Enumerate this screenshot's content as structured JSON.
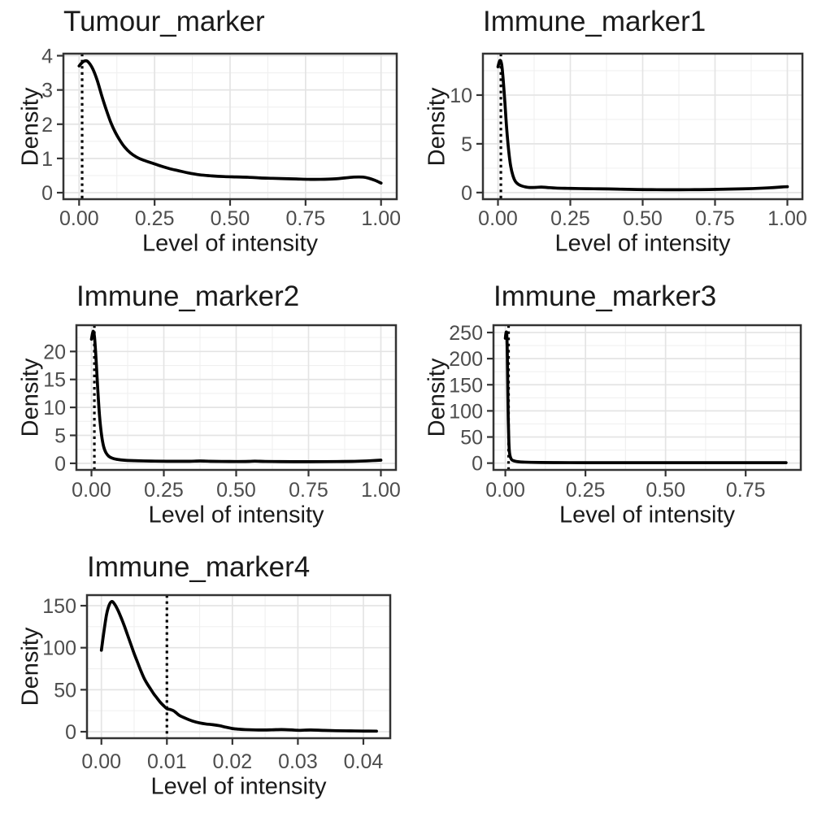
{
  "figure": {
    "background": "#FFFFFF",
    "style": {
      "curve_color": "#000000",
      "vline_color": "#000000",
      "panel_border_color": "#333333",
      "grid_major_color": "#E4E4E4",
      "grid_minor_color": "#F0F0F0",
      "tick_color": "#333333",
      "tick_label_color": "#4D4D4D",
      "title_color": "#1A1A1A"
    }
  },
  "chart_data": [
    {
      "type": "line",
      "title": "Tumour_marker",
      "xlabel": "Level of intensity",
      "ylabel": "Density",
      "grid": true,
      "legend": false,
      "xlim": [
        -0.052,
        1.052
      ],
      "ylim": [
        -0.19,
        4.06
      ],
      "x_ticks": {
        "values": [
          0,
          0.25,
          0.5,
          0.75,
          1
        ],
        "labels": [
          "0.00",
          "0.25",
          "0.50",
          "0.75",
          "1.00"
        ]
      },
      "y_ticks": {
        "values": [
          0,
          1,
          2,
          3,
          4
        ],
        "labels": [
          "0",
          "1",
          "2",
          "3",
          "4"
        ]
      },
      "threshold_vline_x": 0.01,
      "series": [
        {
          "name": "density",
          "points": [
            [
              0,
              3.7
            ],
            [
              0.01,
              3.8
            ],
            [
              0.02,
              3.85
            ],
            [
              0.03,
              3.82
            ],
            [
              0.045,
              3.62
            ],
            [
              0.06,
              3.28
            ],
            [
              0.075,
              2.83
            ],
            [
              0.09,
              2.42
            ],
            [
              0.105,
              2.05
            ],
            [
              0.12,
              1.76
            ],
            [
              0.135,
              1.53
            ],
            [
              0.15,
              1.34
            ],
            [
              0.17,
              1.16
            ],
            [
              0.19,
              1.04
            ],
            [
              0.21,
              0.96
            ],
            [
              0.24,
              0.87
            ],
            [
              0.27,
              0.78
            ],
            [
              0.3,
              0.7
            ],
            [
              0.33,
              0.64
            ],
            [
              0.36,
              0.58
            ],
            [
              0.4,
              0.52
            ],
            [
              0.44,
              0.49
            ],
            [
              0.48,
              0.47
            ],
            [
              0.52,
              0.46
            ],
            [
              0.56,
              0.45
            ],
            [
              0.6,
              0.43
            ],
            [
              0.64,
              0.42
            ],
            [
              0.68,
              0.41
            ],
            [
              0.72,
              0.4
            ],
            [
              0.76,
              0.39
            ],
            [
              0.8,
              0.39
            ],
            [
              0.84,
              0.4
            ],
            [
              0.88,
              0.43
            ],
            [
              0.91,
              0.455
            ],
            [
              0.94,
              0.455
            ],
            [
              0.96,
              0.42
            ],
            [
              0.98,
              0.36
            ],
            [
              1.0,
              0.28
            ]
          ]
        }
      ]
    },
    {
      "type": "line",
      "title": "Immune_marker1",
      "xlabel": "Level of intensity",
      "ylabel": "Density",
      "grid": true,
      "legend": false,
      "xlim": [
        -0.052,
        1.052
      ],
      "ylim": [
        -0.68,
        14.25
      ],
      "x_ticks": {
        "values": [
          0,
          0.25,
          0.5,
          0.75,
          1
        ],
        "labels": [
          "0.00",
          "0.25",
          "0.50",
          "0.75",
          "1.00"
        ]
      },
      "y_ticks": {
        "values": [
          0,
          5,
          10
        ],
        "labels": [
          "0",
          "5",
          "10"
        ]
      },
      "threshold_vline_x": 0.01,
      "series": [
        {
          "name": "density",
          "points": [
            [
              0,
              12.9
            ],
            [
              0.004,
              13.35
            ],
            [
              0.008,
              13.55
            ],
            [
              0.013,
              13.1
            ],
            [
              0.018,
              11.6
            ],
            [
              0.024,
              9.2
            ],
            [
              0.03,
              6.6
            ],
            [
              0.037,
              4.3
            ],
            [
              0.044,
              2.7
            ],
            [
              0.052,
              1.7
            ],
            [
              0.06,
              1.15
            ],
            [
              0.07,
              0.85
            ],
            [
              0.082,
              0.68
            ],
            [
              0.095,
              0.58
            ],
            [
              0.11,
              0.52
            ],
            [
              0.13,
              0.53
            ],
            [
              0.15,
              0.56
            ],
            [
              0.17,
              0.52
            ],
            [
              0.2,
              0.46
            ],
            [
              0.24,
              0.43
            ],
            [
              0.28,
              0.41
            ],
            [
              0.33,
              0.39
            ],
            [
              0.38,
              0.37
            ],
            [
              0.43,
              0.34
            ],
            [
              0.48,
              0.31
            ],
            [
              0.53,
              0.3
            ],
            [
              0.58,
              0.29
            ],
            [
              0.63,
              0.29
            ],
            [
              0.68,
              0.3
            ],
            [
              0.73,
              0.31
            ],
            [
              0.78,
              0.34
            ],
            [
              0.83,
              0.37
            ],
            [
              0.88,
              0.41
            ],
            [
              0.92,
              0.46
            ],
            [
              0.95,
              0.51
            ],
            [
              0.98,
              0.57
            ],
            [
              1.0,
              0.6
            ]
          ]
        }
      ]
    },
    {
      "type": "line",
      "title": "Immune_marker2",
      "xlabel": "Level of intensity",
      "ylabel": "Density",
      "grid": true,
      "legend": false,
      "xlim": [
        -0.052,
        1.052
      ],
      "ylim": [
        -1.18,
        24.7
      ],
      "x_ticks": {
        "values": [
          0,
          0.25,
          0.5,
          0.75,
          1
        ],
        "labels": [
          "0.00",
          "0.25",
          "0.50",
          "0.75",
          "1.00"
        ]
      },
      "y_ticks": {
        "values": [
          0,
          5,
          10,
          15,
          20
        ],
        "labels": [
          "0",
          "5",
          "10",
          "15",
          "20"
        ]
      },
      "threshold_vline_x": 0.01,
      "series": [
        {
          "name": "density",
          "points": [
            [
              0,
              22.2
            ],
            [
              0.004,
              23.3
            ],
            [
              0.007,
              23.55
            ],
            [
              0.011,
              22.3
            ],
            [
              0.016,
              18.5
            ],
            [
              0.022,
              13.0
            ],
            [
              0.028,
              8.4
            ],
            [
              0.035,
              5.0
            ],
            [
              0.042,
              3.0
            ],
            [
              0.05,
              1.9
            ],
            [
              0.06,
              1.25
            ],
            [
              0.072,
              0.92
            ],
            [
              0.085,
              0.73
            ],
            [
              0.1,
              0.62
            ],
            [
              0.12,
              0.53
            ],
            [
              0.15,
              0.47
            ],
            [
              0.18,
              0.43
            ],
            [
              0.22,
              0.39
            ],
            [
              0.26,
              0.37
            ],
            [
              0.3,
              0.36
            ],
            [
              0.34,
              0.37
            ],
            [
              0.375,
              0.42
            ],
            [
              0.41,
              0.37
            ],
            [
              0.45,
              0.34
            ],
            [
              0.5,
              0.32
            ],
            [
              0.545,
              0.35
            ],
            [
              0.565,
              0.39
            ],
            [
              0.6,
              0.34
            ],
            [
              0.65,
              0.31
            ],
            [
              0.7,
              0.29
            ],
            [
              0.75,
              0.29
            ],
            [
              0.8,
              0.3
            ],
            [
              0.85,
              0.32
            ],
            [
              0.9,
              0.35
            ],
            [
              0.94,
              0.41
            ],
            [
              0.97,
              0.48
            ],
            [
              1.0,
              0.56
            ]
          ]
        }
      ]
    },
    {
      "type": "line",
      "title": "Immune_marker3",
      "xlabel": "Level of intensity",
      "ylabel": "Density",
      "grid": true,
      "legend": false,
      "xlim": [
        -0.037,
        0.922
      ],
      "ylim": [
        -13,
        264
      ],
      "x_ticks": {
        "values": [
          0,
          0.25,
          0.5,
          0.75
        ],
        "labels": [
          "0.00",
          "0.25",
          "0.50",
          "0.75"
        ]
      },
      "y_ticks": {
        "values": [
          0,
          50,
          100,
          150,
          200,
          250
        ],
        "labels": [
          "0",
          "50",
          "100",
          "150",
          "200",
          "250"
        ]
      },
      "threshold_vline_x": 0.01,
      "series": [
        {
          "name": "density",
          "points": [
            [
              0,
              239
            ],
            [
              0.0015,
              247
            ],
            [
              0.003,
              251
            ],
            [
              0.0045,
              246
            ],
            [
              0.006,
              215
            ],
            [
              0.0075,
              150
            ],
            [
              0.009,
              85
            ],
            [
              0.011,
              40
            ],
            [
              0.013,
              20
            ],
            [
              0.016,
              11
            ],
            [
              0.02,
              6.5
            ],
            [
              0.026,
              4.5
            ],
            [
              0.034,
              3.2
            ],
            [
              0.045,
              2.4
            ],
            [
              0.06,
              1.9
            ],
            [
              0.08,
              1.5
            ],
            [
              0.11,
              1.2
            ],
            [
              0.15,
              1.0
            ],
            [
              0.2,
              0.9
            ],
            [
              0.28,
              0.8
            ],
            [
              0.36,
              0.8
            ],
            [
              0.45,
              0.8
            ],
            [
              0.55,
              0.8
            ],
            [
              0.65,
              0.8
            ],
            [
              0.75,
              0.8
            ],
            [
              0.82,
              0.8
            ],
            [
              0.876,
              0.8
            ]
          ]
        }
      ]
    },
    {
      "type": "line",
      "title": "Immune_marker4",
      "xlabel": "Level of intensity",
      "ylabel": "Density",
      "grid": true,
      "legend": false,
      "xlim": [
        -0.0022,
        0.0441
      ],
      "ylim": [
        -7.7,
        162.6
      ],
      "x_ticks": {
        "values": [
          0,
          0.01,
          0.02,
          0.03,
          0.04
        ],
        "labels": [
          "0.00",
          "0.01",
          "0.02",
          "0.03",
          "0.04"
        ]
      },
      "y_ticks": {
        "values": [
          0,
          50,
          100,
          150
        ],
        "labels": [
          "0",
          "50",
          "100",
          "150"
        ]
      },
      "threshold_vline_x": 0.01,
      "series": [
        {
          "name": "density",
          "points": [
            [
              0,
              97
            ],
            [
              0.0004,
              120
            ],
            [
              0.0008,
              140
            ],
            [
              0.0012,
              151
            ],
            [
              0.0016,
              155
            ],
            [
              0.002,
              152
            ],
            [
              0.0025,
              145
            ],
            [
              0.003,
              136
            ],
            [
              0.0035,
              126
            ],
            [
              0.004,
              115
            ],
            [
              0.0045,
              104
            ],
            [
              0.005,
              93
            ],
            [
              0.0055,
              83
            ],
            [
              0.006,
              73
            ],
            [
              0.0065,
              64
            ],
            [
              0.007,
              57
            ],
            [
              0.0075,
              51
            ],
            [
              0.008,
              45
            ],
            [
              0.0085,
              40
            ],
            [
              0.009,
              35
            ],
            [
              0.0095,
              31
            ],
            [
              0.01,
              27.5
            ],
            [
              0.0105,
              26.5
            ],
            [
              0.011,
              25
            ],
            [
              0.0115,
              22
            ],
            [
              0.012,
              19
            ],
            [
              0.013,
              15.5
            ],
            [
              0.014,
              12.5
            ],
            [
              0.015,
              10.5
            ],
            [
              0.016,
              9.2
            ],
            [
              0.017,
              8.4
            ],
            [
              0.018,
              7.2
            ],
            [
              0.019,
              5.4
            ],
            [
              0.02,
              3.8
            ],
            [
              0.021,
              3.0
            ],
            [
              0.022,
              2.5
            ],
            [
              0.024,
              2.1
            ],
            [
              0.026,
              2.3
            ],
            [
              0.0275,
              2.6
            ],
            [
              0.029,
              2.2
            ],
            [
              0.03,
              1.7
            ],
            [
              0.031,
              1.9
            ],
            [
              0.032,
              2.1
            ],
            [
              0.034,
              1.6
            ],
            [
              0.036,
              1.2
            ],
            [
              0.038,
              1.0
            ],
            [
              0.04,
              0.8
            ],
            [
              0.042,
              0.7
            ]
          ]
        }
      ]
    }
  ]
}
